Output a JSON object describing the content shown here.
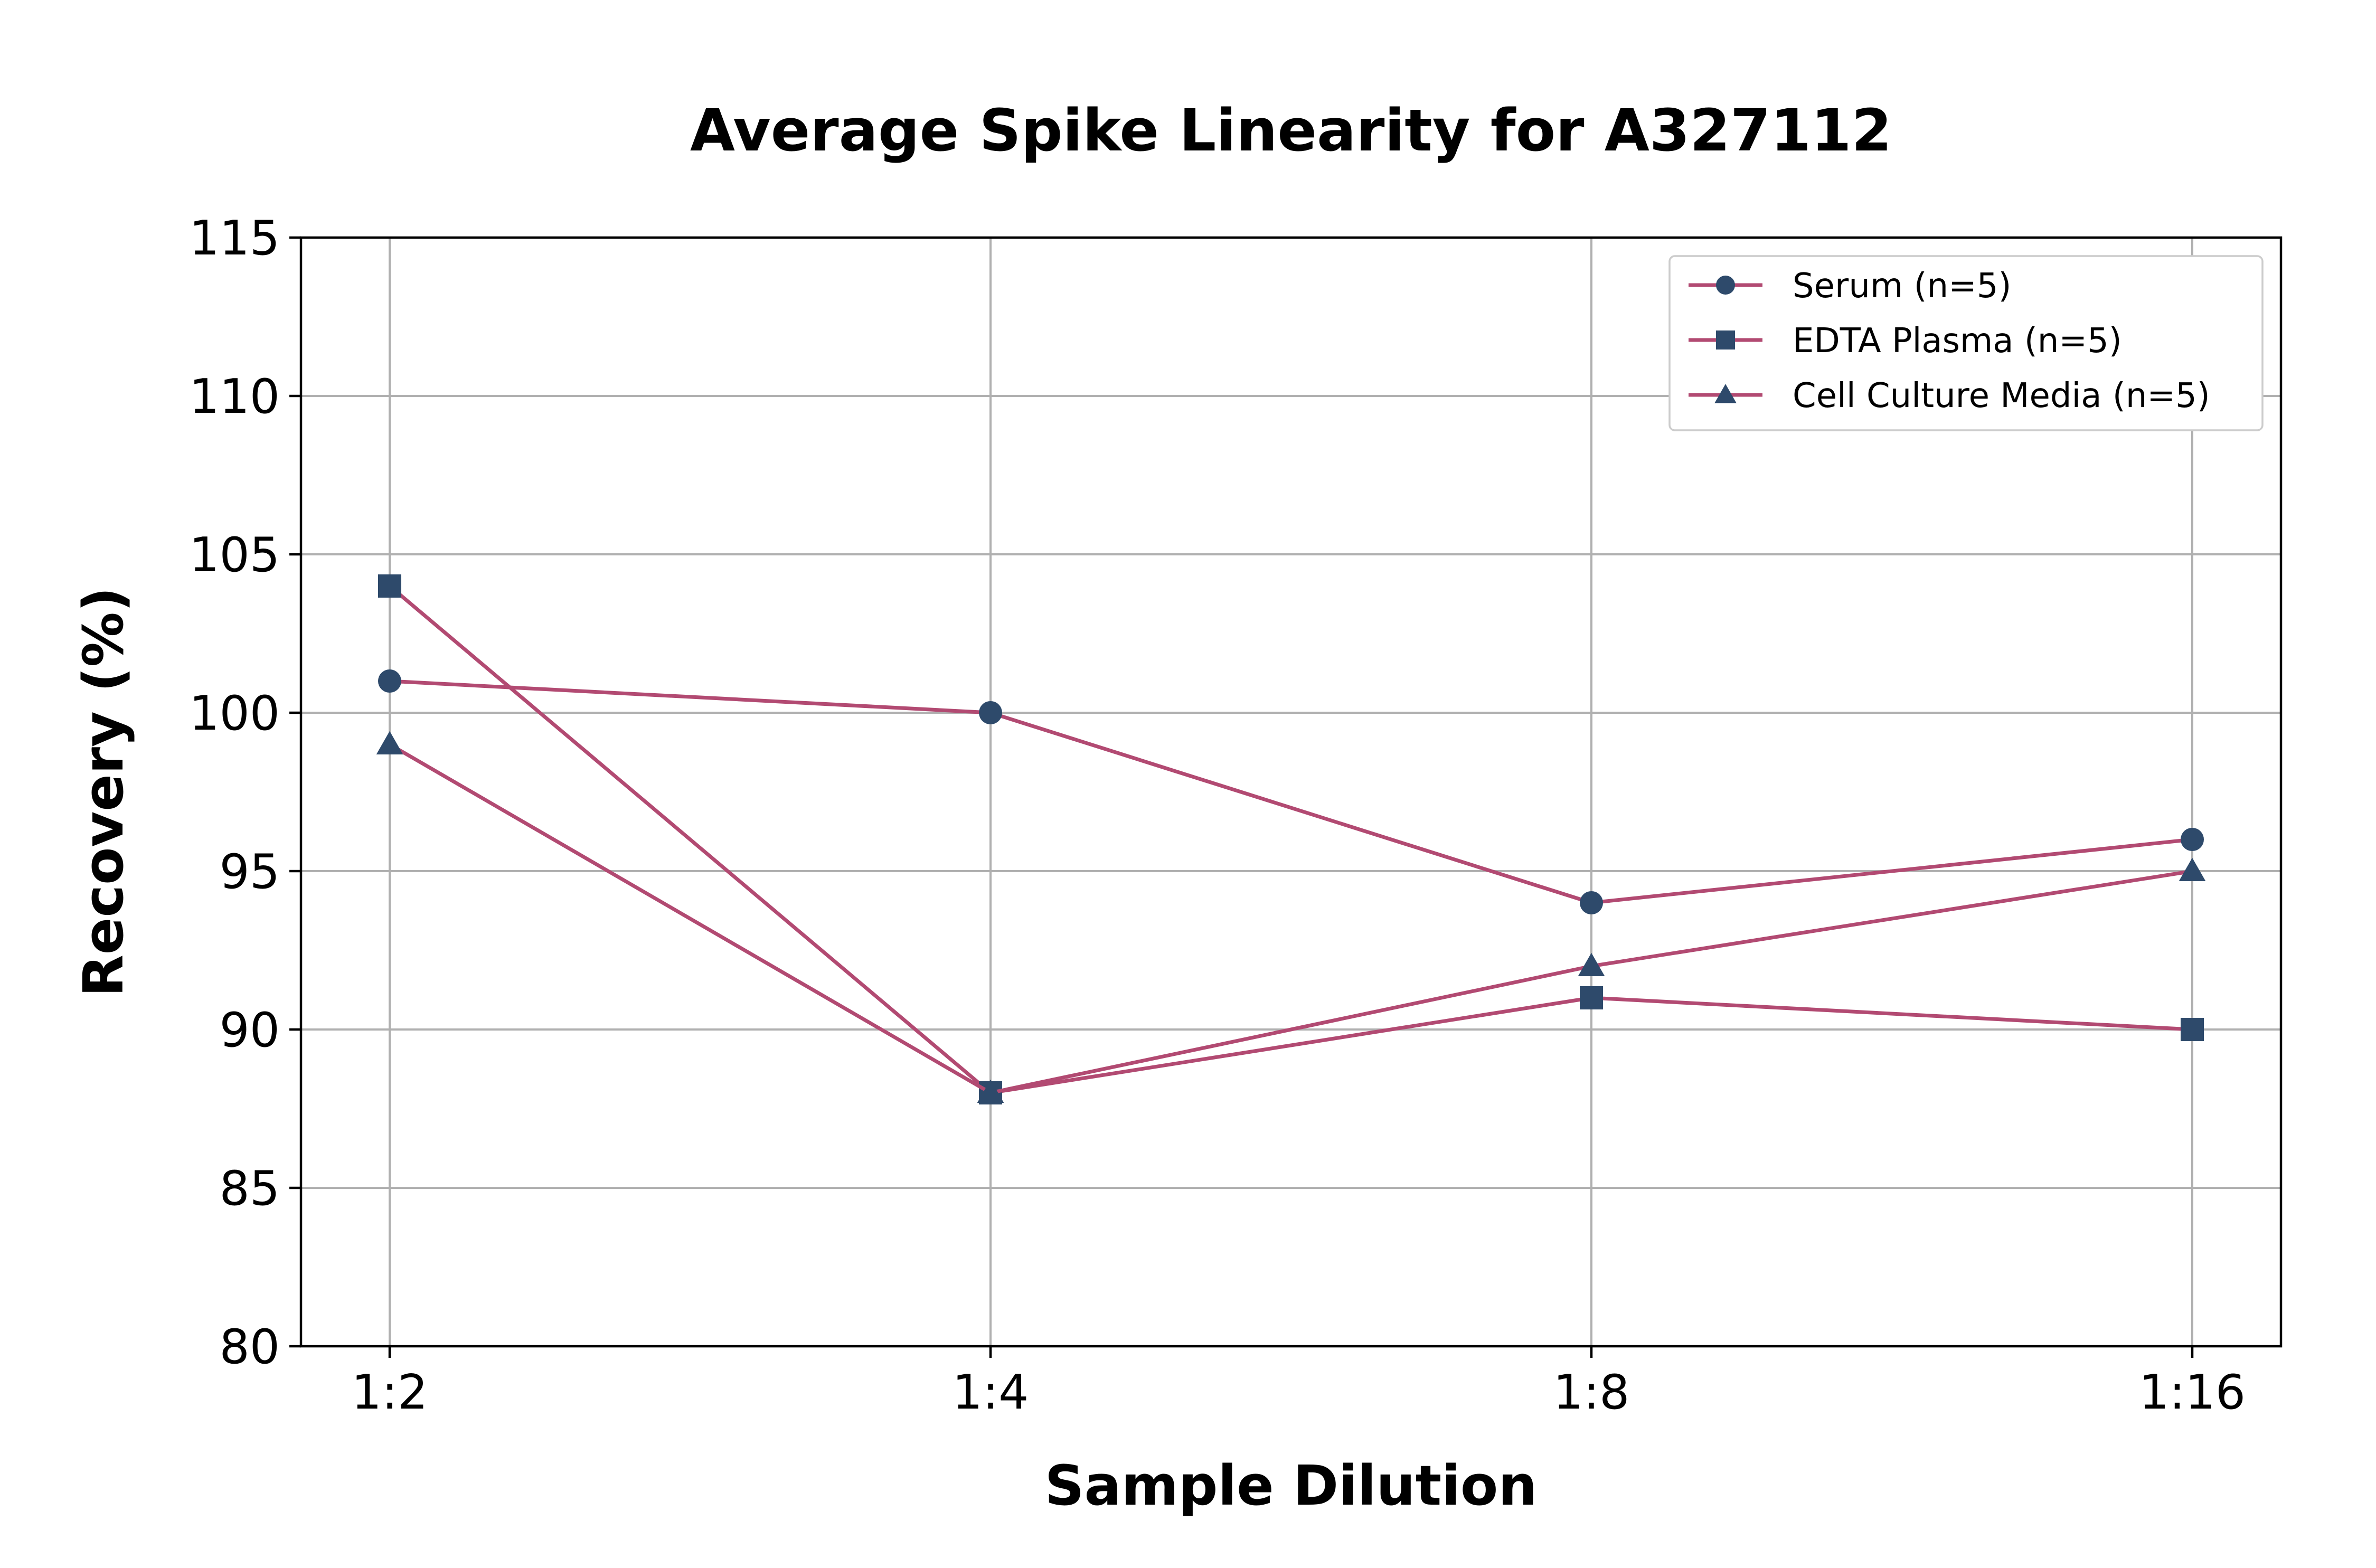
{
  "chart_data": {
    "type": "line",
    "title": "Average Spike Linearity for A327112",
    "xlabel": "Sample Dilution",
    "ylabel": "Recovery (%)",
    "categories": [
      "1:2",
      "1:4",
      "1:8",
      "1:16"
    ],
    "ylim": [
      80,
      115
    ],
    "yticks": [
      80,
      85,
      90,
      95,
      100,
      105,
      110,
      115
    ],
    "grid": true,
    "legend_position": "top-right",
    "line_color": "#b24a72",
    "marker_color": "#2e4a6b",
    "series": [
      {
        "name": "Serum (n=5)",
        "marker": "circle",
        "values": [
          101,
          100,
          94,
          96
        ]
      },
      {
        "name": "EDTA Plasma (n=5)",
        "marker": "square",
        "values": [
          104,
          88,
          91,
          90
        ]
      },
      {
        "name": "Cell Culture Media (n=5)",
        "marker": "triangle",
        "values": [
          99,
          88,
          92,
          95
        ]
      }
    ]
  }
}
